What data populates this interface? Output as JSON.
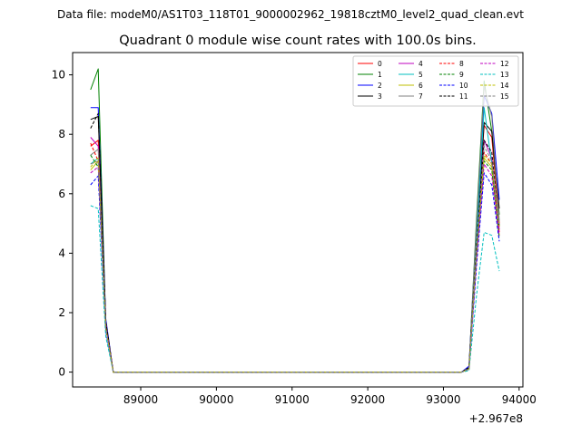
{
  "figure": {
    "suptitle": "Data file: modeM0/AS1T03_118T01_9000002962_19818cztM0_level2_quad_clean.evt"
  },
  "chart_data": {
    "type": "line",
    "title": "Quadrant 0 module wise count rates with 100.0s bins.",
    "xlabel": "",
    "ylabel": "",
    "x_offset_label": "+2.967e8",
    "xlim": [
      88100,
      94050
    ],
    "ylim": [
      -0.5,
      10.75
    ],
    "x_ticks": [
      89000,
      90000,
      91000,
      92000,
      93000,
      94000
    ],
    "x_tick_labels": [
      "89000",
      "90000",
      "91000",
      "92000",
      "93000",
      "94000"
    ],
    "y_ticks": [
      0,
      2,
      4,
      6,
      8,
      10
    ],
    "y_tick_labels": [
      "0",
      "2",
      "4",
      "6",
      "8",
      "10"
    ],
    "grid": false,
    "legend_placement": "top-right",
    "x": [
      88338,
      88438,
      88538,
      88638,
      88738,
      93238,
      93338,
      93438,
      93538,
      93638,
      93738
    ],
    "series": [
      {
        "name": "0",
        "color": "#ff0000",
        "dash": "solid",
        "values": [
          7.6,
          7.8,
          1.7,
          0.0,
          0.0,
          0.0,
          0.15,
          4.6,
          8.3,
          7.9,
          5.0
        ]
      },
      {
        "name": "1",
        "color": "#008000",
        "dash": "solid",
        "values": [
          9.5,
          10.2,
          1.6,
          0.0,
          0.0,
          0.0,
          0.15,
          5.2,
          9.8,
          8.1,
          5.3
        ]
      },
      {
        "name": "2",
        "color": "#0000ff",
        "dash": "solid",
        "values": [
          8.9,
          8.9,
          1.8,
          0.0,
          0.0,
          0.0,
          0.2,
          4.9,
          9.3,
          8.7,
          5.8
        ]
      },
      {
        "name": "3",
        "color": "#000000",
        "dash": "solid",
        "values": [
          8.5,
          8.6,
          1.7,
          0.0,
          0.0,
          0.0,
          0.15,
          4.4,
          8.4,
          8.1,
          5.5
        ]
      },
      {
        "name": "4",
        "color": "#bf00bf",
        "dash": "solid",
        "values": [
          7.9,
          7.6,
          1.6,
          0.0,
          0.0,
          0.0,
          0.1,
          4.2,
          7.8,
          7.2,
          4.8
        ]
      },
      {
        "name": "5",
        "color": "#00bfbf",
        "dash": "solid",
        "values": [
          7.0,
          7.2,
          1.5,
          0.0,
          0.0,
          0.0,
          0.1,
          4.5,
          8.9,
          7.0,
          4.9
        ]
      },
      {
        "name": "6",
        "color": "#bfbf00",
        "dash": "solid",
        "values": [
          6.8,
          7.1,
          1.5,
          0.0,
          0.0,
          0.0,
          0.1,
          4.1,
          7.2,
          6.9,
          4.6
        ]
      },
      {
        "name": "7",
        "color": "#808080",
        "dash": "solid",
        "values": [
          7.3,
          7.5,
          1.6,
          0.0,
          0.0,
          0.0,
          0.15,
          5.0,
          9.6,
          8.6,
          5.1
        ]
      },
      {
        "name": "8",
        "color": "#ff0000",
        "dash": "dashed",
        "values": [
          7.7,
          7.1,
          1.6,
          0.0,
          0.0,
          0.0,
          0.1,
          4.0,
          7.4,
          7.0,
          4.7
        ]
      },
      {
        "name": "9",
        "color": "#008000",
        "dash": "dashed",
        "values": [
          7.3,
          6.9,
          1.5,
          0.0,
          0.0,
          0.0,
          0.1,
          3.9,
          7.1,
          6.8,
          4.5
        ]
      },
      {
        "name": "10",
        "color": "#0000ff",
        "dash": "dashed",
        "values": [
          6.3,
          6.6,
          1.4,
          0.0,
          0.0,
          0.0,
          0.1,
          3.6,
          6.7,
          6.3,
          4.4
        ]
      },
      {
        "name": "11",
        "color": "#000000",
        "dash": "dashed",
        "values": [
          8.2,
          8.7,
          1.7,
          0.0,
          0.0,
          0.0,
          0.15,
          4.3,
          7.8,
          7.4,
          4.9
        ]
      },
      {
        "name": "12",
        "color": "#bf00bf",
        "dash": "dashed",
        "values": [
          6.7,
          6.9,
          1.5,
          0.0,
          0.0,
          0.0,
          0.1,
          3.8,
          7.0,
          6.6,
          4.6
        ]
      },
      {
        "name": "13",
        "color": "#00bfbf",
        "dash": "dashed",
        "values": [
          5.6,
          5.5,
          1.2,
          0.0,
          0.0,
          0.0,
          0.05,
          2.6,
          4.7,
          4.6,
          3.4
        ]
      },
      {
        "name": "14",
        "color": "#bfbf00",
        "dash": "dashed",
        "values": [
          6.9,
          7.2,
          1.5,
          0.0,
          0.0,
          0.0,
          0.1,
          4.0,
          7.3,
          7.0,
          4.9
        ]
      },
      {
        "name": "15",
        "color": "#808080",
        "dash": "dashed",
        "values": [
          7.0,
          7.1,
          1.5,
          0.0,
          0.0,
          0.0,
          0.1,
          4.1,
          7.6,
          7.1,
          5.0
        ]
      }
    ]
  }
}
